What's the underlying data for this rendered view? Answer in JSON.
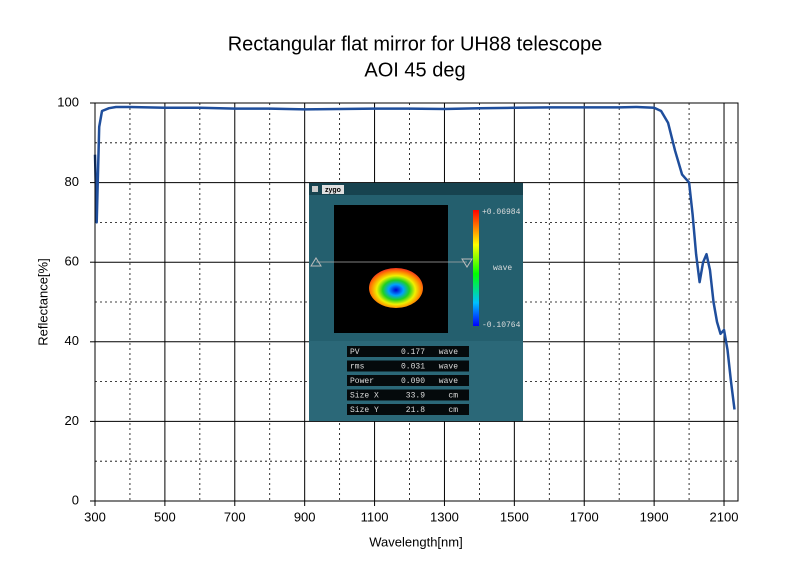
{
  "chart_data": {
    "type": "line",
    "title": "Rectangular flat mirror for UH88 telescope",
    "subtitle": "AOI 45 deg",
    "x_label": "Wavelength[nm]",
    "y_label": "Reflectance[%]",
    "x": [
      300,
      305,
      312,
      320,
      340,
      360,
      400,
      500,
      600,
      700,
      800,
      900,
      1000,
      1100,
      1200,
      1300,
      1400,
      1500,
      1600,
      1700,
      1800,
      1850,
      1900,
      1920,
      1940,
      1960,
      1980,
      2000,
      2010,
      2020,
      2030,
      2040,
      2050,
      2060,
      2070,
      2080,
      2090,
      2100,
      2110,
      2120,
      2130
    ],
    "series": [
      {
        "color": "#1f4e9c",
        "values": [
          87,
          70,
          94,
          98,
          98.7,
          99,
          99,
          98.8,
          98.8,
          98.6,
          98.6,
          98.4,
          98.5,
          98.6,
          98.6,
          98.5,
          98.7,
          98.8,
          98.9,
          98.9,
          98.9,
          99,
          98.8,
          98,
          95,
          88,
          82,
          80,
          72,
          62,
          55,
          60,
          62,
          58,
          50,
          45,
          42,
          43,
          38,
          30,
          23
        ]
      }
    ],
    "xlim": [
      300,
      2140
    ],
    "ylim": [
      0,
      100
    ],
    "xticks": [
      300,
      500,
      700,
      900,
      1100,
      1300,
      1500,
      1700,
      1900,
      2100
    ],
    "yticks": [
      0,
      20,
      40,
      60,
      80,
      100
    ],
    "grid": true
  },
  "inset": {
    "window_title": "zygo",
    "scale_max": "+0.06984",
    "scale_unit": "wave",
    "scale_min": "-0.10764",
    "rows": [
      [
        "PV",
        "0.177",
        "wave"
      ],
      [
        "rms",
        "0.031",
        "wave"
      ],
      [
        "Power",
        "0.090",
        "wave"
      ],
      [
        "Size X",
        "33.9",
        "cm"
      ],
      [
        "Size Y",
        "21.8",
        "cm"
      ]
    ]
  }
}
